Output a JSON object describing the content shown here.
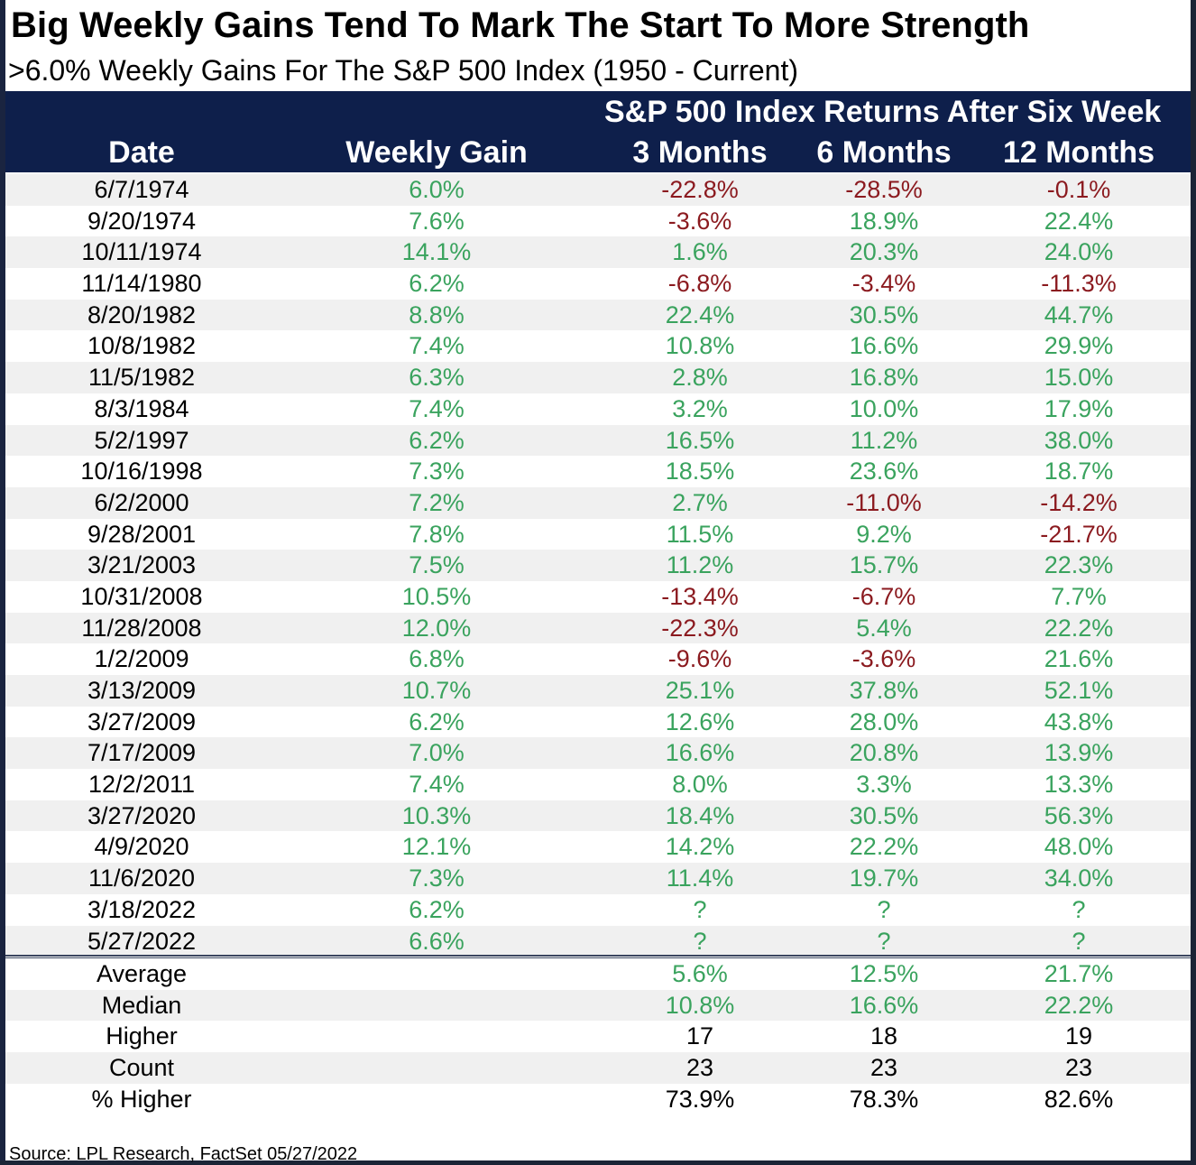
{
  "title": "Big Weekly Gains Tend To Mark The Start To More Strength",
  "subtitle": ">6.0% Weekly Gains For The S&P 500 Index (1950 - Current)",
  "header": {
    "group_label": "S&P 500 Index Returns After Six Week",
    "columns": [
      "Date",
      "Weekly Gain",
      "3 Months",
      "6 Months",
      "12 Months"
    ]
  },
  "colors": {
    "header_bg": "#0e1f4b",
    "positive": "#3aa35e",
    "negative": "#8b1a1f",
    "alt_row": "#f0f0f0"
  },
  "rows": [
    {
      "date": "6/7/1974",
      "gain": "6.0%",
      "m3": "-22.8%",
      "m6": "-28.5%",
      "m12": "-0.1%"
    },
    {
      "date": "9/20/1974",
      "gain": "7.6%",
      "m3": "-3.6%",
      "m6": "18.9%",
      "m12": "22.4%"
    },
    {
      "date": "10/11/1974",
      "gain": "14.1%",
      "m3": "1.6%",
      "m6": "20.3%",
      "m12": "24.0%"
    },
    {
      "date": "11/14/1980",
      "gain": "6.2%",
      "m3": "-6.8%",
      "m6": "-3.4%",
      "m12": "-11.3%"
    },
    {
      "date": "8/20/1982",
      "gain": "8.8%",
      "m3": "22.4%",
      "m6": "30.5%",
      "m12": "44.7%"
    },
    {
      "date": "10/8/1982",
      "gain": "7.4%",
      "m3": "10.8%",
      "m6": "16.6%",
      "m12": "29.9%"
    },
    {
      "date": "11/5/1982",
      "gain": "6.3%",
      "m3": "2.8%",
      "m6": "16.8%",
      "m12": "15.0%"
    },
    {
      "date": "8/3/1984",
      "gain": "7.4%",
      "m3": "3.2%",
      "m6": "10.0%",
      "m12": "17.9%"
    },
    {
      "date": "5/2/1997",
      "gain": "6.2%",
      "m3": "16.5%",
      "m6": "11.2%",
      "m12": "38.0%"
    },
    {
      "date": "10/16/1998",
      "gain": "7.3%",
      "m3": "18.5%",
      "m6": "23.6%",
      "m12": "18.7%"
    },
    {
      "date": "6/2/2000",
      "gain": "7.2%",
      "m3": "2.7%",
      "m6": "-11.0%",
      "m12": "-14.2%"
    },
    {
      "date": "9/28/2001",
      "gain": "7.8%",
      "m3": "11.5%",
      "m6": "9.2%",
      "m12": "-21.7%"
    },
    {
      "date": "3/21/2003",
      "gain": "7.5%",
      "m3": "11.2%",
      "m6": "15.7%",
      "m12": "22.3%"
    },
    {
      "date": "10/31/2008",
      "gain": "10.5%",
      "m3": "-13.4%",
      "m6": "-6.7%",
      "m12": "7.7%"
    },
    {
      "date": "11/28/2008",
      "gain": "12.0%",
      "m3": "-22.3%",
      "m6": "5.4%",
      "m12": "22.2%"
    },
    {
      "date": "1/2/2009",
      "gain": "6.8%",
      "m3": "-9.6%",
      "m6": "-3.6%",
      "m12": "21.6%"
    },
    {
      "date": "3/13/2009",
      "gain": "10.7%",
      "m3": "25.1%",
      "m6": "37.8%",
      "m12": "52.1%"
    },
    {
      "date": "3/27/2009",
      "gain": "6.2%",
      "m3": "12.6%",
      "m6": "28.0%",
      "m12": "43.8%"
    },
    {
      "date": "7/17/2009",
      "gain": "7.0%",
      "m3": "16.6%",
      "m6": "20.8%",
      "m12": "13.9%"
    },
    {
      "date": "12/2/2011",
      "gain": "7.4%",
      "m3": "8.0%",
      "m6": "3.3%",
      "m12": "13.3%"
    },
    {
      "date": "3/27/2020",
      "gain": "10.3%",
      "m3": "18.4%",
      "m6": "30.5%",
      "m12": "56.3%"
    },
    {
      "date": "4/9/2020",
      "gain": "12.1%",
      "m3": "14.2%",
      "m6": "22.2%",
      "m12": "48.0%"
    },
    {
      "date": "11/6/2020",
      "gain": "7.3%",
      "m3": "11.4%",
      "m6": "19.7%",
      "m12": "34.0%"
    },
    {
      "date": "3/18/2022",
      "gain": "6.2%",
      "m3": "?",
      "m6": "?",
      "m12": "?"
    },
    {
      "date": "5/27/2022",
      "gain": "6.6%",
      "m3": "?",
      "m6": "?",
      "m12": "?"
    }
  ],
  "summary": [
    {
      "label": "Average",
      "m3": "5.6%",
      "m6": "12.5%",
      "m12": "21.7%",
      "style": "pos"
    },
    {
      "label": "Median",
      "m3": "10.8%",
      "m6": "16.6%",
      "m12": "22.2%",
      "style": "pos"
    },
    {
      "label": "Higher",
      "m3": "17",
      "m6": "18",
      "m12": "19",
      "style": "neutral"
    },
    {
      "label": "Count",
      "m3": "23",
      "m6": "23",
      "m12": "23",
      "style": "neutral"
    },
    {
      "label": "% Higher",
      "m3": "73.9%",
      "m6": "78.3%",
      "m12": "82.6%",
      "style": "neutral"
    }
  ],
  "source": "Source: LPL Research, FactSet 05/27/2022"
}
